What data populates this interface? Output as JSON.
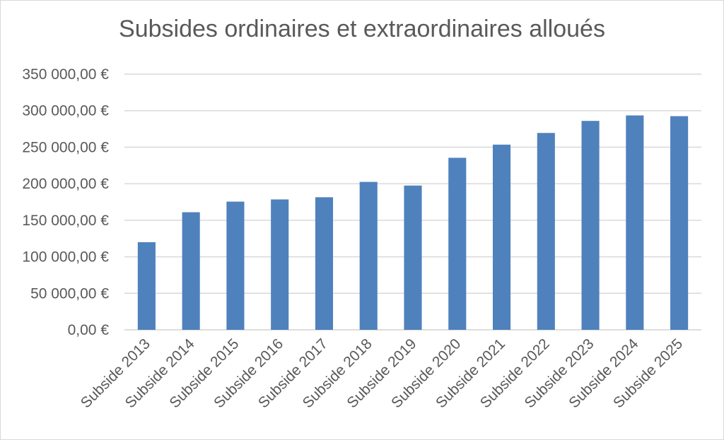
{
  "chart_data": {
    "type": "bar",
    "title": "Subsides ordinaires et extraordinaires alloués",
    "xlabel": "",
    "ylabel": "",
    "categories": [
      "Subside 2013",
      "Subside 2014",
      "Subside 2015",
      "Subside 2016",
      "Subside 2017",
      "Subside 2018",
      "Subside 2019",
      "Subside 2020",
      "Subside 2021",
      "Subside 2022",
      "Subside 2023",
      "Subside 2024",
      "Subside 2025"
    ],
    "values": [
      120000,
      161000,
      175500,
      178500,
      181500,
      202500,
      197500,
      235500,
      253500,
      269500,
      286000,
      293500,
      292500
    ],
    "ylim": [
      0,
      350000
    ],
    "yticks": [
      0,
      50000,
      100000,
      150000,
      200000,
      250000,
      300000,
      350000
    ],
    "ytick_labels": [
      "0,00 €",
      "50 000,00 €",
      "100 000,00 €",
      "150 000,00 €",
      "200 000,00 €",
      "250 000,00 €",
      "300 000,00 €",
      "350 000,00 €"
    ],
    "grid": "horizontal",
    "legend": "none",
    "bar_color": "#4f81bd",
    "grid_color": "#d9d9d9"
  }
}
